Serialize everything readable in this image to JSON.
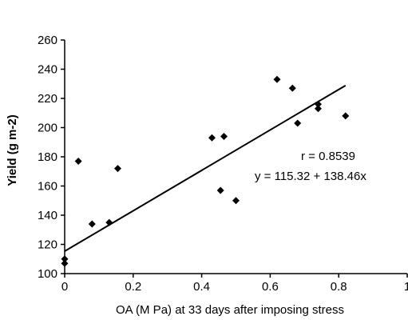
{
  "chart_data": {
    "type": "scatter",
    "title": "",
    "xlabel": "OA (M Pa) at 33 days after imposing stress",
    "ylabel": "Yield (g m-2)",
    "xlim": [
      0,
      1
    ],
    "ylim": [
      100,
      260
    ],
    "x_ticks": [
      "0",
      "0.2",
      "0.4",
      "0.6",
      "0.8",
      "1"
    ],
    "y_ticks": [
      "100",
      "120",
      "140",
      "160",
      "180",
      "200",
      "220",
      "240",
      "260"
    ],
    "grid": false,
    "legend": "none",
    "series": [
      {
        "marker": "diamond",
        "color": "#000000",
        "points": [
          {
            "x": 0.0,
            "y": 107
          },
          {
            "x": 0.0,
            "y": 110
          },
          {
            "x": 0.04,
            "y": 177
          },
          {
            "x": 0.08,
            "y": 134
          },
          {
            "x": 0.13,
            "y": 135
          },
          {
            "x": 0.155,
            "y": 172
          },
          {
            "x": 0.43,
            "y": 193
          },
          {
            "x": 0.455,
            "y": 157
          },
          {
            "x": 0.465,
            "y": 194
          },
          {
            "x": 0.5,
            "y": 150
          },
          {
            "x": 0.62,
            "y": 233
          },
          {
            "x": 0.665,
            "y": 227
          },
          {
            "x": 0.68,
            "y": 203
          },
          {
            "x": 0.74,
            "y": 213
          },
          {
            "x": 0.74,
            "y": 216
          },
          {
            "x": 0.82,
            "y": 208
          }
        ]
      }
    ],
    "trendline": {
      "intercept": 115.32,
      "slope": 138.46,
      "x_range": [
        0,
        0.82
      ],
      "color": "#000000"
    },
    "annotations": [
      "r = 0.8539",
      "y = 115.32 + 138.46x"
    ]
  }
}
